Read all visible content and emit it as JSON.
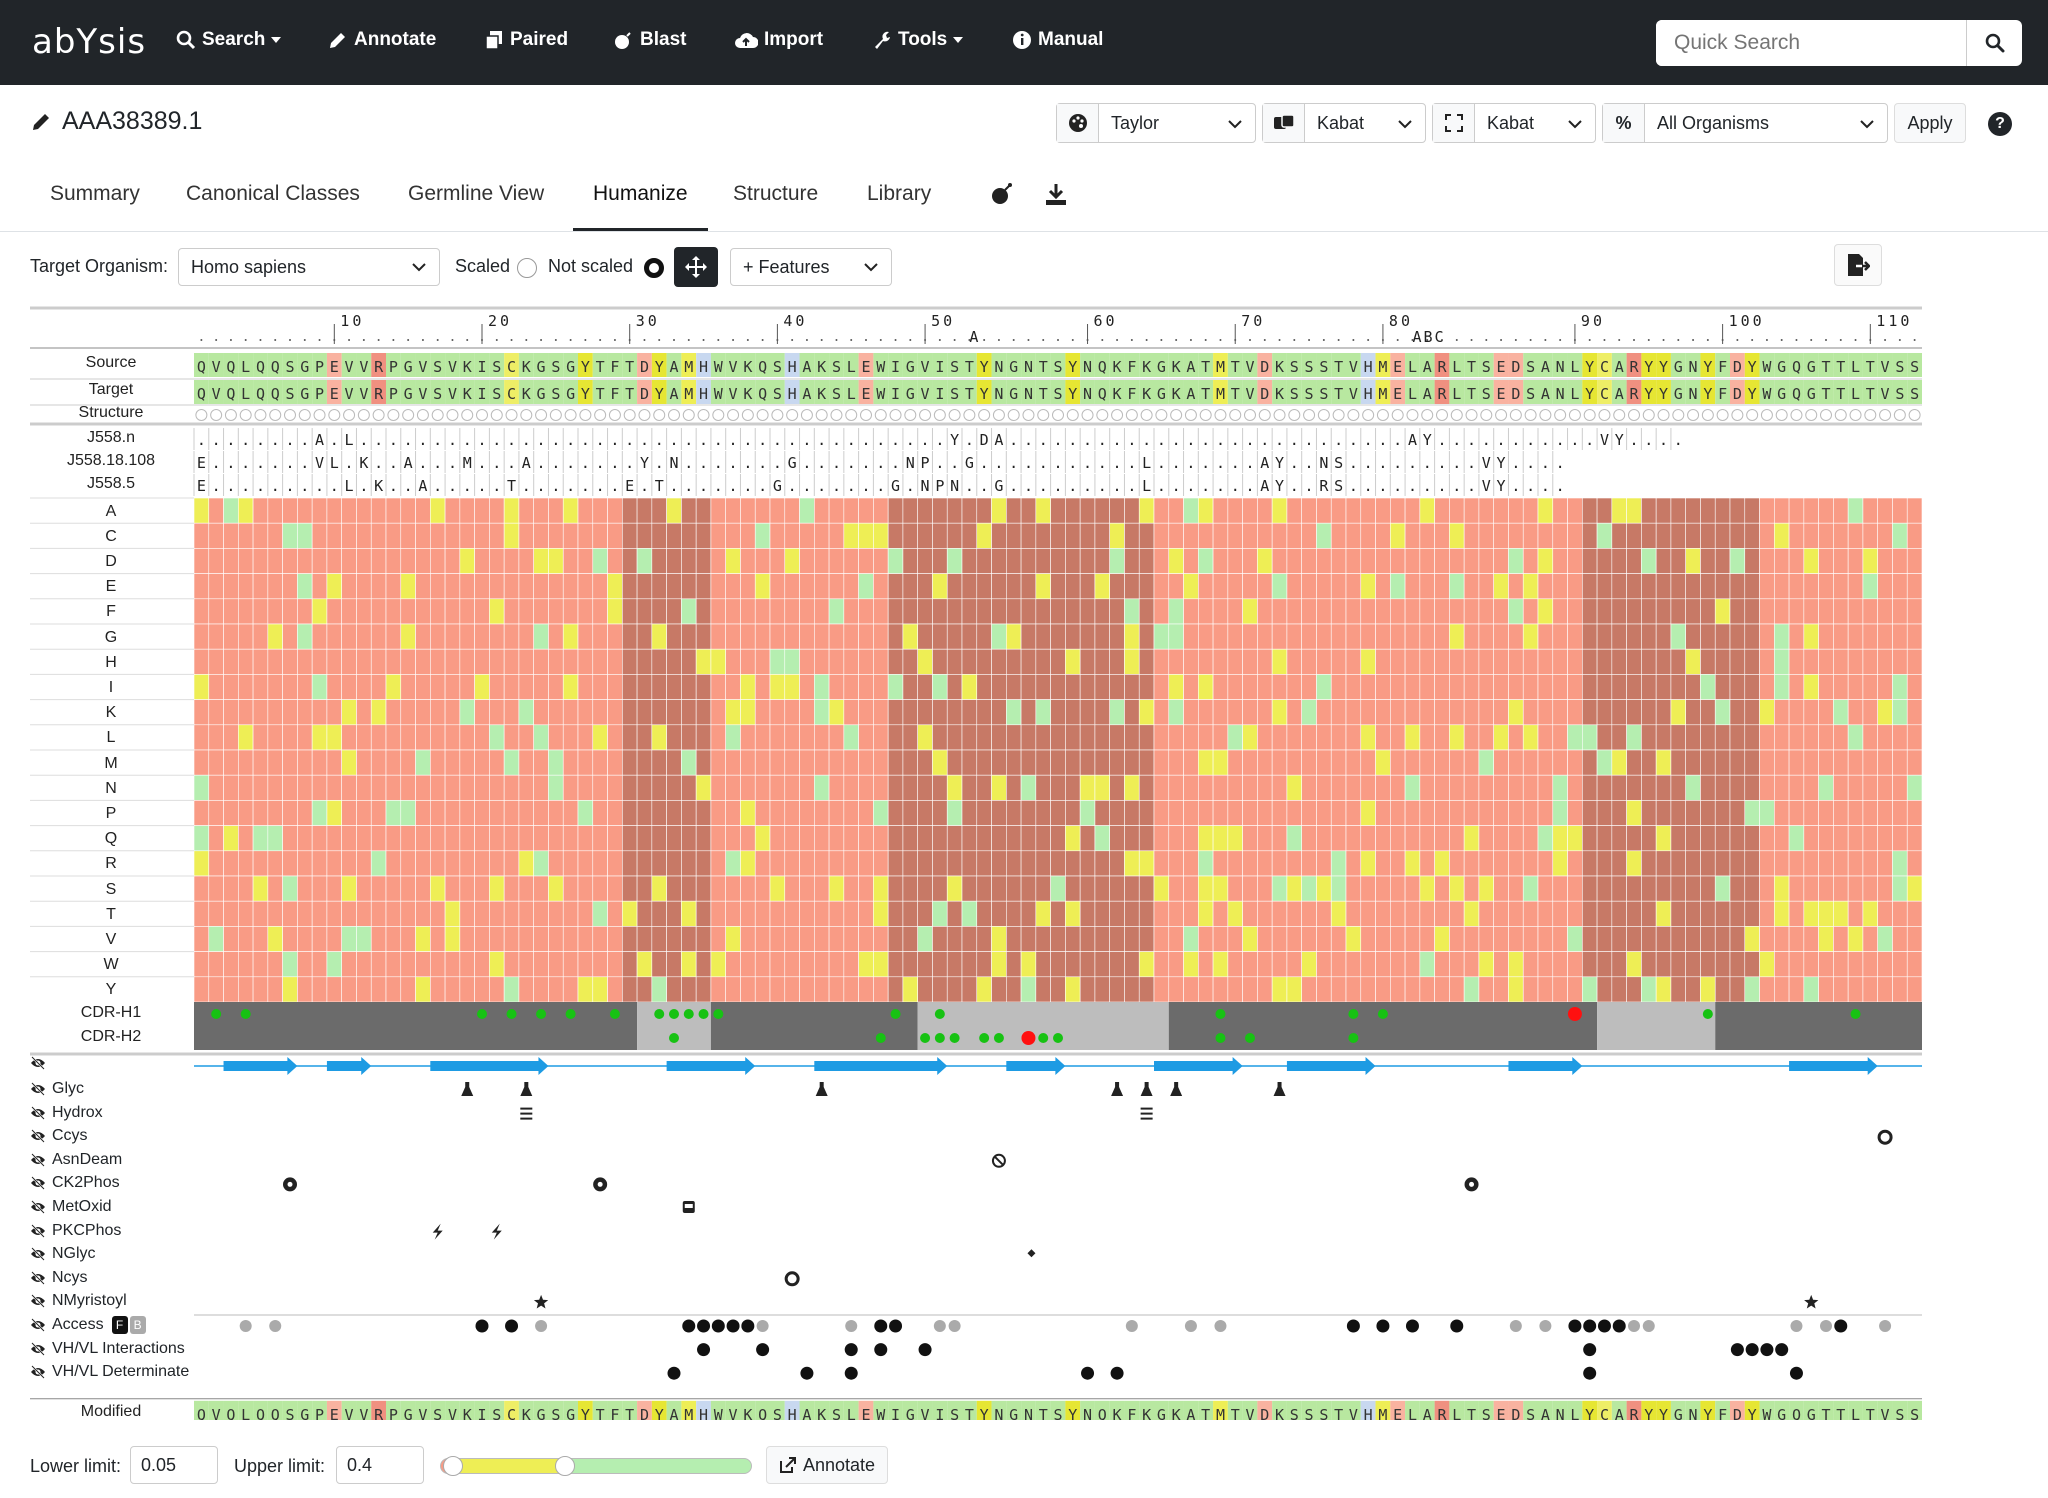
{
  "app": {
    "logo": "abYsis"
  },
  "nav": {
    "items": [
      {
        "label": "Search",
        "icon": "search-icon",
        "caret": true
      },
      {
        "label": "Annotate",
        "icon": "pencil-icon",
        "caret": false
      },
      {
        "label": "Paired",
        "icon": "copy-icon",
        "caret": false
      },
      {
        "label": "Blast",
        "icon": "bomb-icon",
        "caret": false
      },
      {
        "label": "Import",
        "icon": "cloud-upload-icon",
        "caret": false
      },
      {
        "label": "Tools",
        "icon": "wrench-icon",
        "caret": true
      },
      {
        "label": "Manual",
        "icon": "info-icon",
        "caret": false
      }
    ],
    "quick_search_placeholder": "Quick Search"
  },
  "header": {
    "sequence_id": "AAA38389.1",
    "colour_scheme": "Taylor",
    "numbering": "Kabat",
    "cdr_definition": "Kabat",
    "organism_filter": "All Organisms",
    "apply_label": "Apply",
    "help_label": "?"
  },
  "tabs": [
    {
      "label": "Summary",
      "active": false
    },
    {
      "label": "Canonical Classes",
      "active": false
    },
    {
      "label": "Germline View",
      "active": false
    },
    {
      "label": "Humanize",
      "active": true
    },
    {
      "label": "Structure",
      "active": false
    },
    {
      "label": "Library",
      "active": false
    }
  ],
  "toolbar": {
    "target_organism_label": "Target Organism:",
    "target_organism": "Homo sapiens",
    "scaled_label": "Scaled",
    "not_scaled_label": "Not scaled",
    "scaled_selected": false,
    "features_label": "+ Features"
  },
  "alignment": {
    "numbering_ticks": [
      "10",
      "20",
      "30",
      "40",
      "50",
      "60",
      "70",
      "80",
      "90",
      "100",
      "110"
    ],
    "insertion_labels": [
      {
        "after": 52,
        "text": "A"
      },
      {
        "after": 82,
        "text": "ABC"
      }
    ],
    "rows": {
      "source_label": "Source",
      "target_label": "Target",
      "structure_label": "Structure",
      "modified_label": "Modified"
    },
    "source": "QVQLQQSGPEVVRPGVSVKISCKGSGYTFTDYAMHWVKQSHAKSLEWIGVISTYNGNTSYNQKFKGKATMTVDKSSSTVHMELARLTSEDSANLYCARYYGNYFDYWGQGTTLTVSS",
    "target": "QVQLQQSGPEVVRPGVSVKISCKGSGYTFTDYAMHWVKQSHAKSLEWIGVISTYNGNTSYNQKFKGKATMTVDKSSSTVHMELARLTSEDSANLYCARYYGNYFDYWGQGTTLTVSS",
    "modified": "QVQLQQSGPEVVRPGVSVKISCKGSGYTFTDYAMHWVKQSHAKSLEWIGVISTYNGNTSYNQKFKGKATMTVDKSSSTVHMELARLTSEDSANLYCARYYGNYFDYWGQGTTLTVSS",
    "germlines": [
      {
        "name": "J558.n",
        "seq": "........A.L........................................Y.DA...........................AY...........VY...."
      },
      {
        "name": "J558.18.108",
        "seq": "E.......VL.K..A...M...A.......Y.N.......G.......NP..G...........L.......AY..NS.........VY...."
      },
      {
        "name": "J558.5",
        "seq": "E.........L.K..A.....T.......E.T.......G.......G.NPN..G.........L.......AY..RS.........VY...."
      }
    ],
    "amino_acids": [
      "A",
      "C",
      "D",
      "E",
      "F",
      "G",
      "H",
      "I",
      "K",
      "L",
      "M",
      "N",
      "P",
      "Q",
      "R",
      "S",
      "T",
      "V",
      "W",
      "Y"
    ],
    "cdr_labels": [
      "CDR-H1",
      "CDR-H2"
    ]
  },
  "features": {
    "structure_row_icon": "eye-slash-icon",
    "items": [
      {
        "label": "Glyc",
        "icon": "flask-icon"
      },
      {
        "label": "Hydrox",
        "icon": "bars-icon"
      },
      {
        "label": "Ccys",
        "icon": "ring-icon"
      },
      {
        "label": "AsnDeam",
        "icon": "ban-icon"
      },
      {
        "label": "CK2Phos",
        "icon": "cog-icon"
      },
      {
        "label": "MetOxid",
        "icon": "bus-icon"
      },
      {
        "label": "PKCPhos",
        "icon": "bolt-icon"
      },
      {
        "label": "NGlyc",
        "icon": "hammer-icon"
      },
      {
        "label": "Ncys",
        "icon": "ring-icon"
      },
      {
        "label": "NMyristoyl",
        "icon": "star-icon"
      },
      {
        "label": "Access",
        "icon": "dot-icon",
        "badges": [
          "F",
          "B"
        ]
      },
      {
        "label": "VH/VL Interactions",
        "icon": "dot-icon"
      },
      {
        "label": "VH/VL Determinate",
        "icon": "dot-icon"
      }
    ]
  },
  "limits": {
    "lower_label": "Lower limit:",
    "lower_value": "0.05",
    "upper_label": "Upper limit:",
    "upper_value": "0.4",
    "annotate_label": "Annotate"
  },
  "colors": {
    "nav_bg": "#212529",
    "heat_low": "#f99b85",
    "heat_cdr": "#c77966",
    "heat_mid": "#eeee55",
    "heat_high": "#b5eeb0",
    "cdr_dark": "#6b6b6b",
    "cdr_light": "#bdbdbd",
    "strand": "#1e9be3",
    "green_dot": "#17c213",
    "red_dot": "#ff1010"
  }
}
